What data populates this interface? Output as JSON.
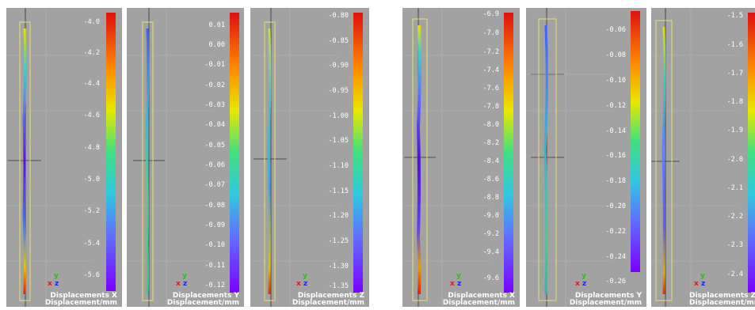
{
  "panels": [
    {
      "caption_line1": "Displacements X",
      "caption_line2": "Displacement/mm",
      "ticks": [
        "-4.0",
        "-4.2",
        "-4.4",
        "-4.6",
        "-4.8",
        "-5.0",
        "-5.2",
        "-5.4",
        "-5.6"
      ]
    },
    {
      "caption_line1": "Displacements Y",
      "caption_line2": "Displacement/mm",
      "ticks": [
        "0.01",
        "0.00",
        "-0.01",
        "-0.02",
        "-0.03",
        "-0.04",
        "-0.05",
        "-0.06",
        "-0.07",
        "-0.08",
        "-0.09",
        "-0.10",
        "-0.11",
        "-0.12"
      ]
    },
    {
      "caption_line1": "Displacements Z",
      "caption_line2": "Displacement/mm",
      "ticks": [
        "-0.80",
        "-0.85",
        "-0.90",
        "-0.95",
        "-1.00",
        "-1.05",
        "-1.10",
        "-1.15",
        "-1.20",
        "-1.25",
        "-1.30",
        "-1.35"
      ]
    },
    {
      "caption_line1": "Displacements X",
      "caption_line2": "Displacement/mm",
      "ticks": [
        "-6.9",
        "-7.0",
        "-7.2",
        "-7.4",
        "-7.6",
        "-7.8",
        "-8.0",
        "-8.2",
        "-8.4",
        "-8.6",
        "-8.8",
        "-9.0",
        "-9.2",
        "-9.4",
        "-9.6"
      ]
    },
    {
      "caption_line1": "Displacements Y",
      "caption_line2": "Displacement/mm",
      "ticks": [
        "-0.06",
        "-0.08",
        "-0.10",
        "-0.12",
        "-0.14",
        "-0.16",
        "-0.18",
        "-0.20",
        "-0.22",
        "-0.24",
        "-0.26"
      ]
    },
    {
      "caption_line1": "Displacements Z",
      "caption_line2": "Displacement/mm",
      "ticks": [
        "-1.5",
        "-1.6",
        "-1.7",
        "-1.8",
        "-1.9",
        "-2.0",
        "-2.1",
        "-2.2",
        "-2.3",
        "-2.4"
      ]
    }
  ],
  "triad": {
    "x": "x",
    "y": "y",
    "z": "z"
  },
  "colors": {
    "background": "#a2a2a2",
    "gradient_top": "#e01010",
    "gradient_bottom": "#7a00ff"
  }
}
